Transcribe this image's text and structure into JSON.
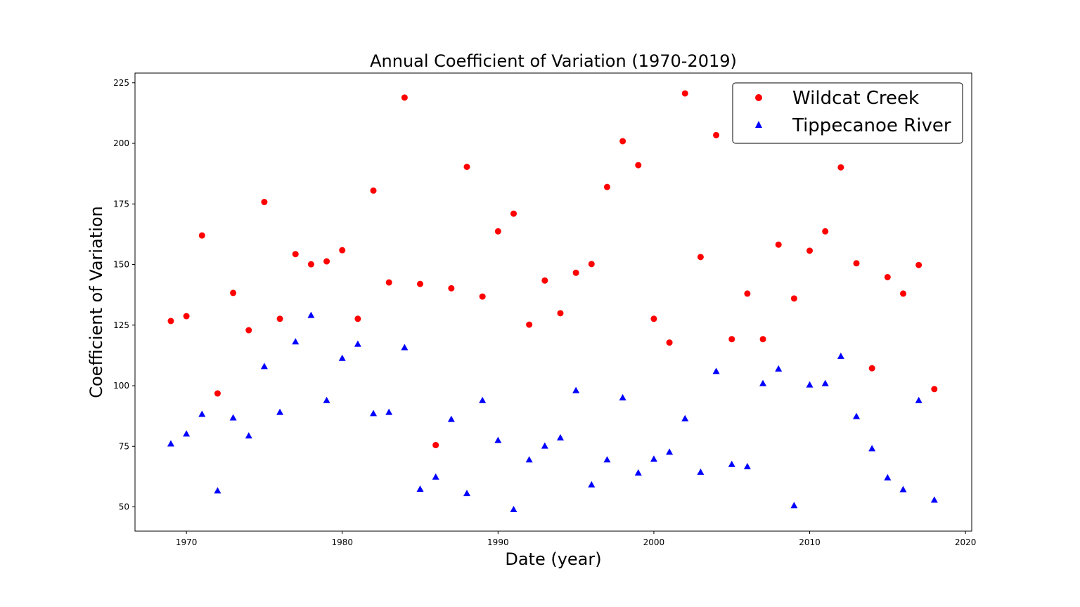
{
  "chart_data": {
    "type": "scatter",
    "title": "Annual Coefficient of Variation (1970-2019)",
    "xlabel": "Date (year)",
    "ylabel": "Coefficient of Variation",
    "xlim": [
      1966.7,
      2020.4
    ],
    "ylim": [
      40,
      229
    ],
    "x_ticks": [
      1970,
      1980,
      1990,
      2000,
      2010,
      2020
    ],
    "y_ticks": [
      50,
      75,
      100,
      125,
      150,
      175,
      200,
      225
    ],
    "grid": false,
    "legend_position": "top-right",
    "x": [
      1969,
      1970,
      1971,
      1972,
      1973,
      1974,
      1975,
      1976,
      1977,
      1978,
      1979,
      1980,
      1981,
      1982,
      1983,
      1984,
      1985,
      1986,
      1987,
      1988,
      1989,
      1990,
      1991,
      1992,
      1993,
      1994,
      1995,
      1996,
      1997,
      1998,
      1999,
      2000,
      2001,
      2002,
      2003,
      2004,
      2005,
      2006,
      2007,
      2008,
      2009,
      2010,
      2011,
      2012,
      2013,
      2014,
      2015,
      2016,
      2017,
      2018
    ],
    "series": [
      {
        "name": "Wildcat Creek",
        "color": "#ff0000",
        "marker": "circle",
        "values": [
          126.7,
          128.7,
          162,
          96.8,
          138.3,
          122.9,
          175.8,
          127.6,
          154.3,
          150.1,
          151.3,
          155.9,
          127.6,
          180.5,
          142.6,
          218.9,
          142,
          75.5,
          140.2,
          190.3,
          136.8,
          163.7,
          171,
          125.2,
          143.4,
          129.9,
          146.6,
          150.2,
          182,
          200.9,
          191,
          127.6,
          117.8,
          220.6,
          153.1,
          203.4,
          119.2,
          138,
          119.2,
          158.2,
          136,
          155.7,
          163.7,
          190.1,
          150.5,
          107.2,
          144.8,
          138,
          149.8,
          98.6
        ]
      },
      {
        "name": "Tippecanoe River",
        "color": "#0000ff",
        "marker": "triangle",
        "values": [
          76.1,
          80.2,
          88.3,
          56.7,
          86.8,
          79.4,
          108,
          89.1,
          118.2,
          129.1,
          94,
          111.4,
          117.2,
          88.6,
          89.1,
          115.8,
          57.4,
          62.4,
          86.2,
          55.6,
          94,
          77.5,
          49,
          69.5,
          75.2,
          78.6,
          98.1,
          59.2,
          69.5,
          95.1,
          64.1,
          69.8,
          72.7,
          86.5,
          64.4,
          106,
          67.6,
          66.7,
          101,
          107,
          50.6,
          100.4,
          101,
          112.2,
          87.4,
          74.1,
          62.1,
          57.2,
          94,
          52.9
        ]
      }
    ]
  }
}
